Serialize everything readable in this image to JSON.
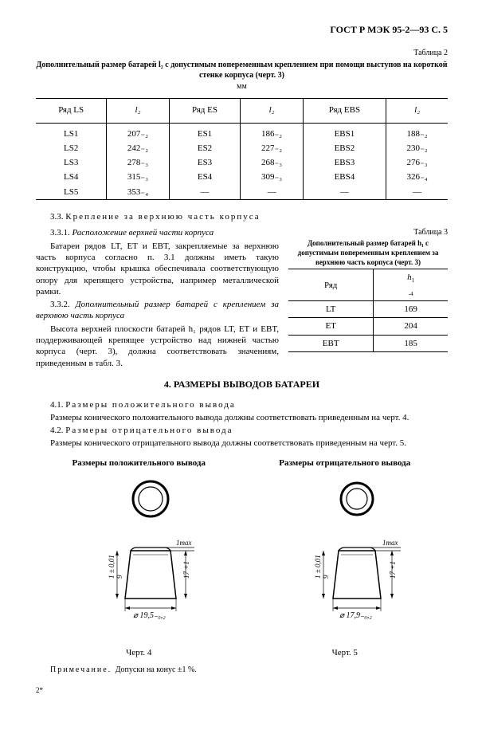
{
  "header": {
    "code": "ГОСТ Р МЭК 95-2—93 С. 5"
  },
  "table2": {
    "label": "Таблица 2",
    "title": "Дополнительный размер батарей l₂ с допустимым попеременным креплением при помощи выступов на короткой стенке корпуса (черт. 3)",
    "unit": "мм",
    "cols": [
      "Ряд LS",
      "l₂",
      "Ряд ES",
      "l₂",
      "Ряд EBS",
      "l₂"
    ],
    "rows": [
      [
        "LS1",
        "207₋₂",
        "ES1",
        "186₋₂",
        "EBS1",
        "188₋₂"
      ],
      [
        "LS2",
        "242₋₂",
        "ES2",
        "227₋₂",
        "EBS2",
        "230₋₂"
      ],
      [
        "LS3",
        "278₋₃",
        "ES3",
        "268₋₃",
        "EBS3",
        "276₋₃"
      ],
      [
        "LS4",
        "315₋₃",
        "ES4",
        "309₋₃",
        "EBS4",
        "326₋₄"
      ],
      [
        "LS5",
        "353₋₄",
        "—",
        "—",
        "—",
        "—"
      ]
    ]
  },
  "s33": {
    "heading_num": "3.3. ",
    "heading": "Крепление за верхнюю часть корпуса",
    "s331_num": "3.3.1. ",
    "s331_title": "Расположение верхней части корпуса",
    "p1": "Батареи рядов LT, ET и EBT, закрепляемые за верхнюю часть корпуса согласно п. 3.1 должны иметь такую конструкцию, чтобы крышка обеспечивала соответствующую опору для крепящего устройства, например металлической рамки.",
    "s332_num": "3.3.2. ",
    "s332_title": "Дополнительный размер батарей с креплением за верхнюю часть корпуса",
    "p2": "Высота верхней плоскости батарей h₁ рядов LT, ET и EBT, поддерживающей крепящее устройство над нижней частью корпуса (черт. 3), должна соответствовать значениям, приведенным в табл. 3."
  },
  "table3": {
    "label": "Таблица 3",
    "title": "Дополнительный размер батарей h₁ с допустимым попеременным креплением за верхнюю часть корпуса (черт. 3)",
    "cols": [
      "Ряд",
      "h₁₋₄"
    ],
    "rows": [
      [
        "LT",
        "169"
      ],
      [
        "ET",
        "204"
      ],
      [
        "EBT",
        "185"
      ]
    ]
  },
  "s4": {
    "heading": "4. РАЗМЕРЫ ВЫВОДОВ БАТАРЕИ",
    "s41_num": "4.1. ",
    "s41_title": "Размеры положительного вывода",
    "p41": "Размеры конического положительного вывода должны соответствовать приведенным на черт. 4.",
    "s42_num": "4.2. ",
    "s42_title": "Размеры отрицательного вывода",
    "p42": "Размеры конического отрицательного вывода должны соответствовать приведенным на черт. 5."
  },
  "fig": {
    "pos_title": "Размеры положительного вывода",
    "neg_title": "Размеры отрицательного вывода",
    "cap4": "Черт. 4",
    "cap5": "Черт. 5",
    "pos_diam": "⌀ 19,5₋₀,₂",
    "neg_diam": "⌀ 17,9₋₀,₂",
    "tmax": "1max",
    "taper": "1 ± 0,01",
    "g": "9",
    "height": "17 +1"
  },
  "note": {
    "label": "Примечание. ",
    "text": "Допуски на конус ±1 %."
  },
  "foot": "2*"
}
